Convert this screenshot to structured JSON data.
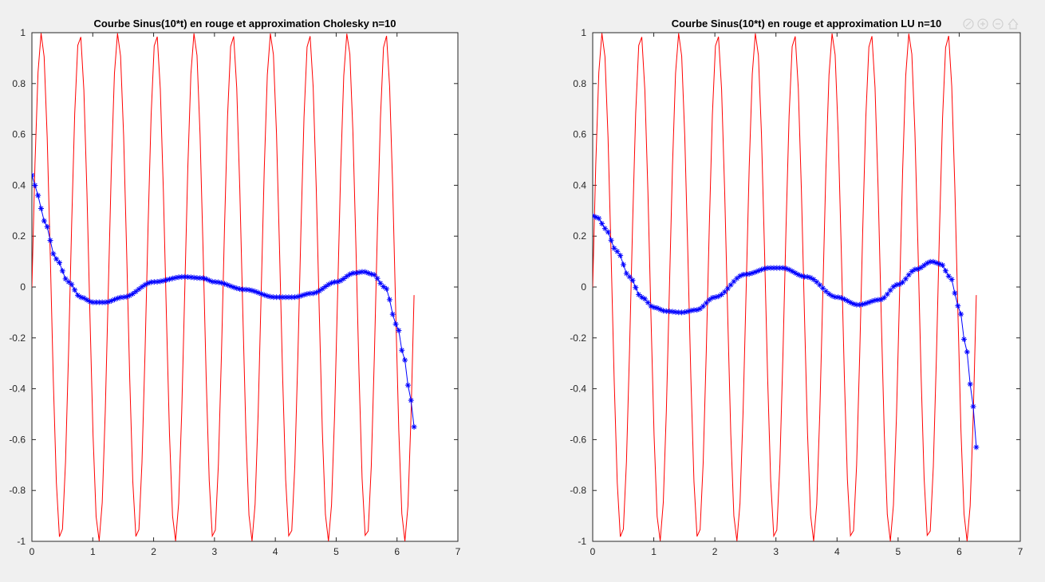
{
  "toolbar": {
    "icons": [
      "brush-icon",
      "zoom-in-icon",
      "zoom-out-icon",
      "home-icon"
    ]
  },
  "chart_data": [
    {
      "type": "line",
      "title": "Courbe Sinus(10*t) en rouge et approximation Cholesky n=10",
      "xlabel": "",
      "ylabel": "",
      "xlim": [
        0,
        7
      ],
      "ylim": [
        -1,
        1
      ],
      "xticks": [
        0,
        1,
        2,
        3,
        4,
        5,
        6,
        7
      ],
      "yticks": [
        -1,
        -0.8,
        -0.6,
        -0.4,
        -0.2,
        0,
        0.2,
        0.4,
        0.6,
        0.8,
        1
      ],
      "grid": false,
      "series": [
        {
          "color": "#ff0000",
          "marker": "none",
          "function": "sin(10*t)",
          "t_range": [
            0,
            6.28
          ],
          "samples": 126
        },
        {
          "color": "#0000ff",
          "marker": "asterisk",
          "x": [
            0,
            0.1,
            0.2,
            0.4,
            0.6,
            0.8,
            1.0,
            1.2,
            1.5,
            2.0,
            2.5,
            2.8,
            3.0,
            3.5,
            4.0,
            4.3,
            4.6,
            5.0,
            5.3,
            5.45,
            5.6,
            5.8,
            6.0,
            6.1,
            6.2,
            6.28
          ],
          "y": [
            0.44,
            0.36,
            0.26,
            0.11,
            0.02,
            -0.04,
            -0.06,
            -0.06,
            -0.04,
            0.02,
            0.04,
            0.035,
            0.02,
            -0.01,
            -0.04,
            -0.04,
            -0.025,
            0.02,
            0.055,
            0.06,
            0.05,
            0.0,
            -0.15,
            -0.26,
            -0.4,
            -0.55
          ]
        }
      ]
    },
    {
      "type": "line",
      "title": "Courbe Sinus(10*t) en rouge et approximation LU n=10",
      "xlabel": "",
      "ylabel": "",
      "xlim": [
        0,
        7
      ],
      "ylim": [
        -1,
        1
      ],
      "xticks": [
        0,
        1,
        2,
        3,
        4,
        5,
        6,
        7
      ],
      "yticks": [
        -1,
        -0.8,
        -0.6,
        -0.4,
        -0.2,
        0,
        0.2,
        0.4,
        0.6,
        0.8,
        1
      ],
      "grid": false,
      "series": [
        {
          "color": "#ff0000",
          "marker": "none",
          "function": "sin(10*t)",
          "t_range": [
            0,
            6.28
          ],
          "samples": 126
        },
        {
          "color": "#0000ff",
          "marker": "asterisk",
          "x": [
            0,
            0.1,
            0.2,
            0.4,
            0.6,
            0.8,
            1.0,
            1.2,
            1.45,
            1.7,
            2.0,
            2.5,
            2.9,
            3.1,
            3.5,
            4.0,
            4.35,
            4.7,
            5.0,
            5.3,
            5.55,
            5.7,
            5.85,
            6.0,
            6.1,
            6.2,
            6.28
          ],
          "y": [
            0.28,
            0.27,
            0.23,
            0.14,
            0.04,
            -0.04,
            -0.08,
            -0.095,
            -0.1,
            -0.09,
            -0.04,
            0.05,
            0.075,
            0.075,
            0.04,
            -0.04,
            -0.07,
            -0.05,
            0.01,
            0.07,
            0.1,
            0.09,
            0.04,
            -0.08,
            -0.22,
            -0.4,
            -0.63
          ]
        }
      ]
    }
  ]
}
